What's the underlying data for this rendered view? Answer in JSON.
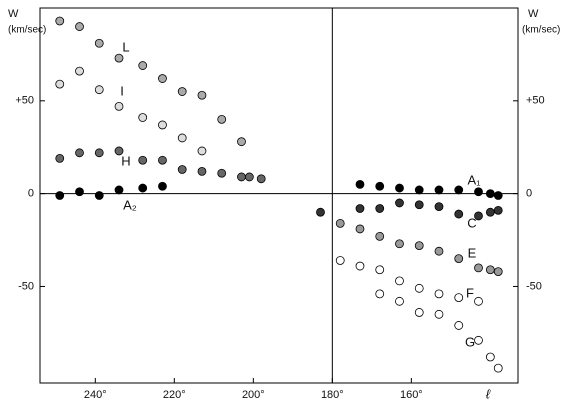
{
  "chart_data": {
    "type": "scatter",
    "ylabel": "W",
    "yunit": "(km/sec)",
    "xlabel": "ℓ",
    "xlim": [
      254,
      133
    ],
    "ylim": [
      -102,
      100
    ],
    "xticks": [
      {
        "value": 240,
        "label": "240°"
      },
      {
        "value": 220,
        "label": "220°"
      },
      {
        "value": 200,
        "label": "200°"
      },
      {
        "value": 180,
        "label": "180°"
      },
      {
        "value": 160,
        "label": "160°"
      }
    ],
    "yticks": [
      {
        "value": 50,
        "label": "+50"
      },
      0,
      -50
    ],
    "series": [
      {
        "name": "L",
        "color": "#aaaaaa",
        "x": [
          249,
          244,
          239,
          234,
          228,
          223,
          218,
          213,
          208,
          203
        ],
        "values": [
          93,
          90,
          81,
          73,
          69,
          62,
          55,
          53,
          40,
          28
        ]
      },
      {
        "name": "I",
        "color": "#dddddd",
        "x": [
          249,
          244,
          239,
          234,
          228,
          223,
          218,
          213
        ],
        "values": [
          59,
          66,
          56,
          47,
          41,
          37,
          30,
          23
        ]
      },
      {
        "name": "H",
        "color": "#666666",
        "x": [
          249,
          244,
          239,
          234,
          228,
          223,
          218,
          213,
          208,
          203,
          201,
          198
        ],
        "values": [
          19,
          22,
          22,
          23,
          18,
          18,
          13,
          12,
          11,
          9,
          9,
          8
        ]
      },
      {
        "name": "A₂",
        "color": "#000000",
        "x": [
          249,
          244,
          239,
          234,
          228,
          223
        ],
        "values": [
          -1,
          1,
          -1,
          2,
          3,
          4
        ]
      },
      {
        "name": "A₁",
        "color": "#000000",
        "x": [
          173,
          168,
          163,
          158,
          153,
          148,
          143,
          140,
          138
        ],
        "values": [
          5,
          4,
          3,
          2,
          2,
          2,
          1,
          0,
          -1
        ]
      },
      {
        "name": "C",
        "color": "#333333",
        "x": [
          183,
          173,
          168,
          163,
          158,
          153,
          148,
          143,
          140,
          138
        ],
        "values": [
          -10,
          -8,
          -8,
          -5,
          -6,
          -7,
          -11,
          -12,
          -10,
          -9
        ]
      },
      {
        "name": "E",
        "color": "#999999",
        "x": [
          178,
          173,
          168,
          163,
          158,
          153,
          148,
          143,
          140,
          138
        ],
        "values": [
          -16,
          -19,
          -23,
          -27,
          -28,
          -31,
          -35,
          -40,
          -41,
          -42
        ]
      },
      {
        "name": "F",
        "color": "#ffffff",
        "x": [
          178,
          173,
          168,
          163,
          158,
          153,
          148,
          143
        ],
        "values": [
          -36,
          -39,
          -41,
          -47,
          -51,
          -54,
          -56,
          -58
        ]
      },
      {
        "name": "G",
        "color": "#ffffff",
        "x": [
          168,
          163,
          158,
          153,
          148,
          143,
          140,
          138
        ],
        "values": [
          -54,
          -58,
          -64,
          -65,
          -71,
          -79,
          -88,
          -94
        ]
      }
    ]
  }
}
